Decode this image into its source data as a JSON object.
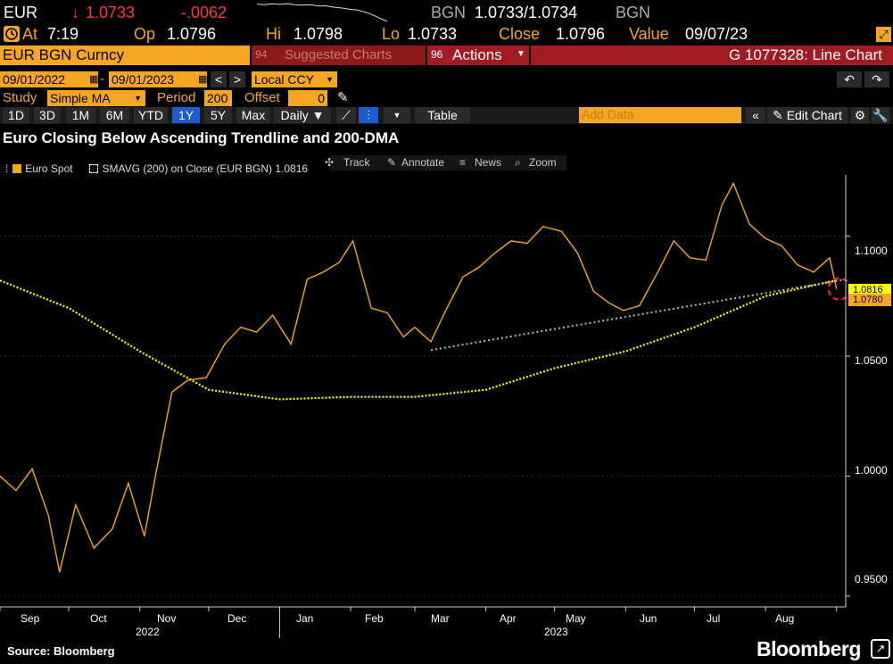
{
  "quote": {
    "ticker": "EUR",
    "last": "1.0733",
    "change": "-.0062",
    "bid_ask_label": "BGN",
    "bid_ask": "1.0733/1.0734",
    "bid_ask_source": "BGN",
    "at_label": "At",
    "at_time": "7:19",
    "op_label": "Op",
    "op": "1.0796",
    "hi_label": "Hi",
    "hi": "1.0798",
    "lo_label": "Lo",
    "lo": "1.0733",
    "close_label": "Close",
    "close": "1.0796",
    "value_label": "Value",
    "value_date": "09/07/23",
    "sparkline": [
      1.0796,
      1.0794,
      1.0797,
      1.0795,
      1.0798,
      1.0793,
      1.0792,
      1.0794,
      1.0789,
      1.079,
      1.0785,
      1.0782,
      1.0778,
      1.0775,
      1.0768,
      1.0758,
      1.0745,
      1.0733
    ]
  },
  "toolbar": {
    "security": "EUR BGN Curncy",
    "suggested_charts": "Suggested Charts",
    "actions_num": "96",
    "actions": "Actions",
    "chart_id": "G 1077328: Line Chart",
    "start_date": "09/01/2022",
    "end_date": "09/01/2023",
    "currency": "Local CCY",
    "study_label": "Study",
    "study_value": "Simple MA",
    "period_label": "Period",
    "period_value": "200",
    "offset_label": "Offset",
    "offset_value": "0",
    "ranges": [
      "1D",
      "3D",
      "1M",
      "6M",
      "YTD",
      "1Y",
      "5Y",
      "Max"
    ],
    "active_range": "1Y",
    "frequency": "Daily",
    "table_label": "Table",
    "add_data_placeholder": "Add Data",
    "edit_chart": "Edit Chart"
  },
  "chart_data": {
    "type": "line",
    "title": "Euro Closing Below Ascending Trendline and 200-DMA",
    "legend": [
      {
        "name": "Euro Spot",
        "color": "#f5a623"
      },
      {
        "name": "SMAVG (200)  on Close (EUR BGN) 1.0816",
        "color": "#ffff00"
      }
    ],
    "tools": [
      "Track",
      "Annotate",
      "News",
      "Zoom"
    ],
    "x_months": [
      "Sep",
      "Oct",
      "Nov",
      "Dec",
      "Jan",
      "Feb",
      "Mar",
      "Apr",
      "May",
      "Jun",
      "Jul",
      "Aug"
    ],
    "x_years": [
      "2022",
      "2023"
    ],
    "y_ticks": [
      "1.1000",
      "1.0500",
      "1.0000",
      "0.9500"
    ],
    "ylim": [
      0.9455,
      1.1255
    ],
    "y_badges": {
      "sma": "1.0816",
      "spot": "1.0780"
    },
    "series": [
      {
        "name": "Euro Spot",
        "color": "#f5a623",
        "x": [
          "2022-09-01",
          "2022-09-08",
          "2022-09-15",
          "2022-09-22",
          "2022-09-27",
          "2022-10-04",
          "2022-10-12",
          "2022-10-20",
          "2022-10-27",
          "2022-11-03",
          "2022-11-08",
          "2022-11-15",
          "2022-11-22",
          "2022-11-30",
          "2022-12-08",
          "2022-12-15",
          "2022-12-22",
          "2022-12-29",
          "2023-01-06",
          "2023-01-13",
          "2023-01-20",
          "2023-01-27",
          "2023-02-02",
          "2023-02-10",
          "2023-02-17",
          "2023-02-24",
          "2023-03-01",
          "2023-03-08",
          "2023-03-15",
          "2023-03-22",
          "2023-03-29",
          "2023-04-05",
          "2023-04-12",
          "2023-04-19",
          "2023-04-26",
          "2023-05-04",
          "2023-05-11",
          "2023-05-18",
          "2023-05-25",
          "2023-05-31",
          "2023-06-07",
          "2023-06-15",
          "2023-06-22",
          "2023-06-29",
          "2023-07-06",
          "2023-07-13",
          "2023-07-18",
          "2023-07-25",
          "2023-08-01",
          "2023-08-08",
          "2023-08-15",
          "2023-08-22",
          "2023-08-29",
          "2023-09-01"
        ],
        "values": [
          1.0,
          0.994,
          1.003,
          0.984,
          0.96,
          0.988,
          0.97,
          0.978,
          0.997,
          0.975,
          1.001,
          1.035,
          1.04,
          1.041,
          1.055,
          1.062,
          1.06,
          1.067,
          1.055,
          1.082,
          1.085,
          1.089,
          1.098,
          1.07,
          1.068,
          1.058,
          1.062,
          1.056,
          1.07,
          1.083,
          1.087,
          1.093,
          1.098,
          1.097,
          1.104,
          1.102,
          1.093,
          1.077,
          1.072,
          1.069,
          1.071,
          1.085,
          1.098,
          1.091,
          1.09,
          1.113,
          1.122,
          1.105,
          1.099,
          1.096,
          1.088,
          1.085,
          1.091,
          1.078
        ]
      },
      {
        "name": "SMAVG (200)",
        "color": "#ffff00",
        "x": [
          "2022-09-01",
          "2022-10-01",
          "2022-11-01",
          "2022-12-01",
          "2023-01-01",
          "2023-02-01",
          "2023-03-01",
          "2023-04-01",
          "2023-05-01",
          "2023-06-01",
          "2023-07-01",
          "2023-08-01",
          "2023-09-01"
        ],
        "values": [
          1.0815,
          1.07,
          1.052,
          1.036,
          1.032,
          1.033,
          1.033,
          1.036,
          1.045,
          1.052,
          1.062,
          1.075,
          1.0816
        ]
      },
      {
        "name": "Trendline",
        "color": "#bbbbbb",
        "x": [
          "2023-03-08",
          "2023-09-05"
        ],
        "values": [
          1.0525,
          1.082
        ]
      }
    ]
  },
  "footer": {
    "source": "Source: Bloomberg",
    "brand": "Bloomberg"
  }
}
